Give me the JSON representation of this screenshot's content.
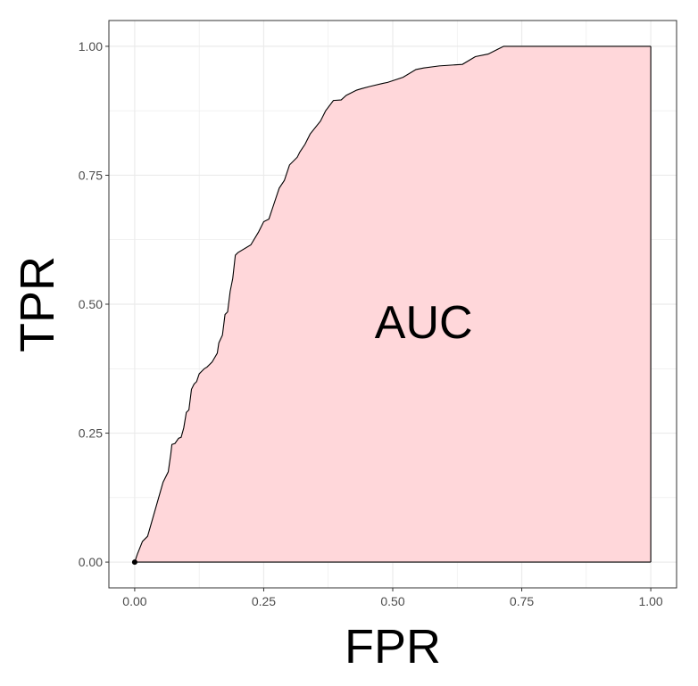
{
  "chart_data": {
    "type": "area",
    "xlabel": "FPR",
    "ylabel": "TPR",
    "xlim": [
      -0.05,
      1.05
    ],
    "ylim": [
      -0.05,
      1.05
    ],
    "x_ticks": [
      0.0,
      0.25,
      0.5,
      0.75,
      1.0
    ],
    "y_ticks": [
      0.0,
      0.25,
      0.5,
      0.75,
      1.0
    ],
    "x_tick_labels": [
      "0.00",
      "0.25",
      "0.50",
      "0.75",
      "1.00"
    ],
    "y_tick_labels": [
      "0.00",
      "0.25",
      "0.50",
      "0.75",
      "1.00"
    ],
    "grid": true,
    "annotation": {
      "text": "AUC",
      "x": 0.56,
      "y": 0.465
    },
    "colors": {
      "fill": "#ffd7da",
      "line": "#000000",
      "grid": "#ebebeb",
      "frame": "#333333"
    },
    "series": [
      {
        "x": [
          0.0,
          0.005,
          0.015,
          0.025,
          0.035,
          0.045,
          0.055,
          0.065,
          0.07,
          0.072,
          0.078,
          0.085,
          0.09,
          0.095,
          0.1,
          0.105,
          0.11,
          0.115,
          0.12,
          0.125,
          0.13,
          0.135,
          0.14,
          0.15,
          0.16,
          0.163,
          0.17,
          0.175,
          0.18,
          0.185,
          0.19,
          0.195,
          0.2,
          0.225,
          0.24,
          0.25,
          0.26,
          0.27,
          0.28,
          0.29,
          0.3,
          0.315,
          0.32,
          0.33,
          0.34,
          0.36,
          0.37,
          0.385,
          0.4,
          0.41,
          0.43,
          0.44,
          0.455,
          0.48,
          0.49,
          0.52,
          0.545,
          0.56,
          0.59,
          0.635,
          0.66,
          0.685,
          0.705,
          0.715,
          0.75,
          1.0
        ],
        "y": [
          0.0,
          0.015,
          0.04,
          0.05,
          0.085,
          0.12,
          0.155,
          0.175,
          0.21,
          0.228,
          0.23,
          0.24,
          0.242,
          0.26,
          0.29,
          0.295,
          0.335,
          0.345,
          0.35,
          0.365,
          0.37,
          0.375,
          0.378,
          0.388,
          0.405,
          0.425,
          0.44,
          0.48,
          0.485,
          0.525,
          0.55,
          0.595,
          0.6,
          0.615,
          0.64,
          0.66,
          0.665,
          0.695,
          0.725,
          0.74,
          0.77,
          0.785,
          0.795,
          0.81,
          0.83,
          0.855,
          0.875,
          0.895,
          0.896,
          0.905,
          0.915,
          0.918,
          0.922,
          0.928,
          0.93,
          0.94,
          0.955,
          0.958,
          0.962,
          0.965,
          0.98,
          0.985,
          0.995,
          1.0,
          1.0,
          1.0
        ]
      }
    ]
  }
}
